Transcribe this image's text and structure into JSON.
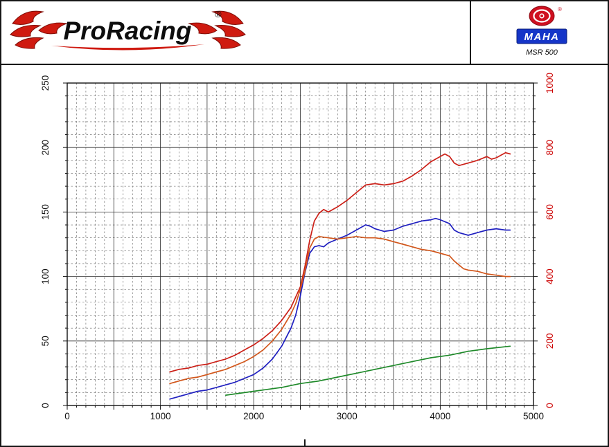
{
  "header": {
    "proracing": {
      "wordmark": "ProRacing",
      "reg": "®"
    },
    "maha": {
      "wordmark": "MAHA",
      "model": "MSR 500",
      "reg": "®"
    }
  },
  "chart_data": {
    "type": "line",
    "title": "",
    "xlabel": "",
    "ylabel_left": "",
    "ylabel_right": "",
    "grid": "major solid, minor dashed",
    "legend": "none",
    "x_axis": {
      "min": 0,
      "max": 5000,
      "ticks": [
        0,
        1000,
        2000,
        3000,
        4000,
        5000
      ],
      "minor_step": 100,
      "major_step": 500
    },
    "y_left": {
      "min": 0,
      "max": 250,
      "ticks": [
        0,
        50,
        100,
        150,
        200,
        250
      ],
      "minor_step": 10,
      "major_step": 50,
      "color": "#111111"
    },
    "y_right": {
      "min": 0,
      "max": 1000,
      "ticks": [
        0,
        200,
        400,
        600,
        800,
        1000
      ],
      "minor_step": 40,
      "major_step": 200,
      "color": "#cc0000"
    },
    "series": [
      {
        "name": "curve-red",
        "color": "#cc2018",
        "axis": "left",
        "points": [
          [
            1100,
            26
          ],
          [
            1200,
            28
          ],
          [
            1300,
            29
          ],
          [
            1400,
            31
          ],
          [
            1500,
            32
          ],
          [
            1600,
            34
          ],
          [
            1700,
            36
          ],
          [
            1800,
            39
          ],
          [
            1900,
            43
          ],
          [
            2000,
            47
          ],
          [
            2100,
            52
          ],
          [
            2200,
            58
          ],
          [
            2300,
            66
          ],
          [
            2400,
            76
          ],
          [
            2500,
            92
          ],
          [
            2550,
            108
          ],
          [
            2600,
            128
          ],
          [
            2650,
            143
          ],
          [
            2700,
            149
          ],
          [
            2750,
            152
          ],
          [
            2800,
            150
          ],
          [
            2900,
            154
          ],
          [
            3000,
            159
          ],
          [
            3100,
            165
          ],
          [
            3200,
            171
          ],
          [
            3300,
            172
          ],
          [
            3400,
            171
          ],
          [
            3500,
            172
          ],
          [
            3600,
            174
          ],
          [
            3700,
            178
          ],
          [
            3800,
            183
          ],
          [
            3900,
            189
          ],
          [
            4000,
            193
          ],
          [
            4050,
            195
          ],
          [
            4100,
            193
          ],
          [
            4150,
            188
          ],
          [
            4200,
            186
          ],
          [
            4300,
            188
          ],
          [
            4400,
            190
          ],
          [
            4500,
            193
          ],
          [
            4550,
            191
          ],
          [
            4600,
            192
          ],
          [
            4650,
            194
          ],
          [
            4700,
            196
          ],
          [
            4750,
            195
          ]
        ]
      },
      {
        "name": "curve-blue",
        "color": "#2020c0",
        "axis": "left",
        "points": [
          [
            1100,
            5
          ],
          [
            1200,
            7
          ],
          [
            1300,
            9
          ],
          [
            1400,
            11
          ],
          [
            1500,
            12
          ],
          [
            1600,
            14
          ],
          [
            1700,
            16
          ],
          [
            1800,
            18
          ],
          [
            1900,
            21
          ],
          [
            2000,
            24
          ],
          [
            2100,
            29
          ],
          [
            2200,
            36
          ],
          [
            2300,
            46
          ],
          [
            2400,
            60
          ],
          [
            2450,
            70
          ],
          [
            2500,
            85
          ],
          [
            2550,
            103
          ],
          [
            2600,
            118
          ],
          [
            2650,
            123
          ],
          [
            2700,
            124
          ],
          [
            2750,
            123
          ],
          [
            2800,
            126
          ],
          [
            2900,
            129
          ],
          [
            3000,
            132
          ],
          [
            3100,
            136
          ],
          [
            3200,
            140
          ],
          [
            3250,
            139
          ],
          [
            3300,
            137
          ],
          [
            3400,
            135
          ],
          [
            3500,
            136
          ],
          [
            3600,
            139
          ],
          [
            3700,
            141
          ],
          [
            3800,
            143
          ],
          [
            3900,
            144
          ],
          [
            3950,
            145
          ],
          [
            4000,
            144
          ],
          [
            4100,
            141
          ],
          [
            4150,
            136
          ],
          [
            4200,
            134
          ],
          [
            4300,
            132
          ],
          [
            4400,
            134
          ],
          [
            4500,
            136
          ],
          [
            4600,
            137
          ],
          [
            4700,
            136
          ],
          [
            4750,
            136
          ]
        ]
      },
      {
        "name": "curve-orange",
        "color": "#d2571c",
        "axis": "left",
        "points": [
          [
            1100,
            17
          ],
          [
            1200,
            19
          ],
          [
            1300,
            21
          ],
          [
            1400,
            22
          ],
          [
            1500,
            24
          ],
          [
            1600,
            26
          ],
          [
            1700,
            28
          ],
          [
            1800,
            31
          ],
          [
            1900,
            34
          ],
          [
            2000,
            38
          ],
          [
            2100,
            43
          ],
          [
            2200,
            50
          ],
          [
            2300,
            59
          ],
          [
            2400,
            71
          ],
          [
            2450,
            79
          ],
          [
            2500,
            90
          ],
          [
            2550,
            104
          ],
          [
            2600,
            122
          ],
          [
            2650,
            129
          ],
          [
            2700,
            131
          ],
          [
            2800,
            130
          ],
          [
            2900,
            129
          ],
          [
            3000,
            130
          ],
          [
            3100,
            131
          ],
          [
            3200,
            130
          ],
          [
            3300,
            130
          ],
          [
            3400,
            129
          ],
          [
            3500,
            127
          ],
          [
            3600,
            125
          ],
          [
            3700,
            123
          ],
          [
            3800,
            121
          ],
          [
            3900,
            120
          ],
          [
            4000,
            118
          ],
          [
            4100,
            116
          ],
          [
            4150,
            112
          ],
          [
            4200,
            109
          ],
          [
            4250,
            106
          ],
          [
            4300,
            105
          ],
          [
            4400,
            104
          ],
          [
            4500,
            102
          ],
          [
            4600,
            101
          ],
          [
            4700,
            100
          ],
          [
            4750,
            100
          ]
        ]
      },
      {
        "name": "curve-green",
        "color": "#1f8a2a",
        "axis": "left",
        "points": [
          [
            1700,
            8
          ],
          [
            1900,
            10
          ],
          [
            2100,
            12
          ],
          [
            2300,
            14
          ],
          [
            2500,
            17
          ],
          [
            2700,
            19
          ],
          [
            2900,
            22
          ],
          [
            3100,
            25
          ],
          [
            3300,
            28
          ],
          [
            3500,
            31
          ],
          [
            3700,
            34
          ],
          [
            3900,
            37
          ],
          [
            4100,
            39
          ],
          [
            4300,
            42
          ],
          [
            4500,
            44
          ],
          [
            4750,
            46
          ]
        ]
      }
    ]
  }
}
